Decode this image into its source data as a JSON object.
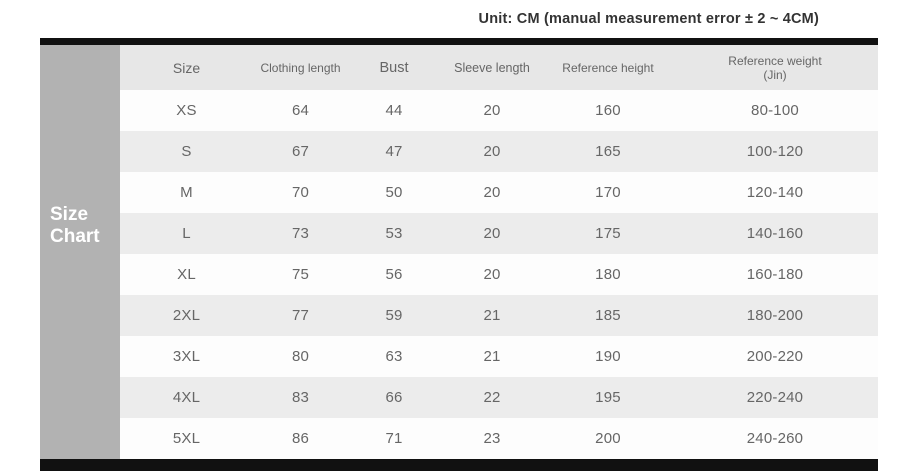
{
  "header": {
    "unit_note": "Unit: CM (manual measurement error ± 2 ~ 4CM)"
  },
  "side_panel": {
    "line1": "Size",
    "line2": "Chart"
  },
  "chart_data": {
    "type": "table",
    "title": "Size Chart",
    "unit_note": "Unit: CM (manual measurement error ± 2 ~ 4CM)",
    "columns": [
      "Size",
      "Clothing length",
      "Bust",
      "Sleeve length",
      "Reference height",
      "Reference weight\n(Jin)"
    ],
    "rows": [
      [
        "XS",
        "64",
        "44",
        "20",
        "160",
        "80-100"
      ],
      [
        "S",
        "67",
        "47",
        "20",
        "165",
        "100-120"
      ],
      [
        "M",
        "70",
        "50",
        "20",
        "170",
        "120-140"
      ],
      [
        "L",
        "73",
        "53",
        "20",
        "175",
        "140-160"
      ],
      [
        "XL",
        "75",
        "56",
        "20",
        "180",
        "160-180"
      ],
      [
        "2XL",
        "77",
        "59",
        "21",
        "185",
        "180-200"
      ],
      [
        "3XL",
        "80",
        "63",
        "21",
        "190",
        "200-220"
      ],
      [
        "4XL",
        "83",
        "66",
        "22",
        "195",
        "220-240"
      ],
      [
        "5XL",
        "86",
        "71",
        "23",
        "200",
        "240-260"
      ]
    ]
  },
  "colors": {
    "bar": "#111111",
    "panel_bg": "#b2b2b2",
    "panel_text": "#ffffff",
    "header_bg": "#e7e7e7",
    "stripe_bg": "#ececec",
    "row_bg": "#fdfdfd",
    "text": "#666666",
    "note_text": "#333333"
  }
}
